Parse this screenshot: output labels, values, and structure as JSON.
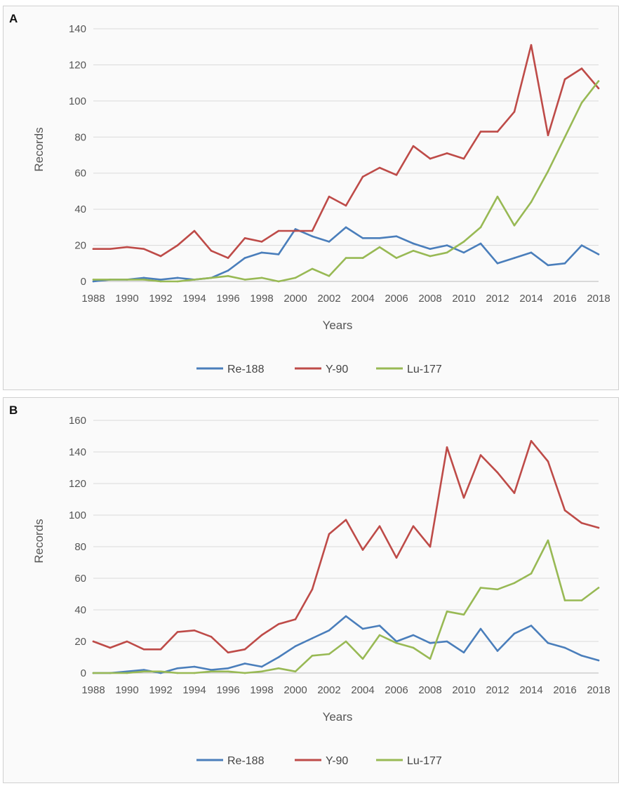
{
  "chart_data": [
    {
      "panel_label": "A",
      "type": "line",
      "title": "",
      "xlabel": "Years",
      "ylabel": "Records",
      "ylim": [
        0,
        140
      ],
      "ystep": 20,
      "grid": true,
      "legend_position": "bottom",
      "x": [
        1988,
        1989,
        1990,
        1991,
        1992,
        1993,
        1994,
        1995,
        1996,
        1997,
        1998,
        1999,
        2000,
        2001,
        2002,
        2003,
        2004,
        2005,
        2006,
        2007,
        2008,
        2009,
        2010,
        2011,
        2012,
        2013,
        2014,
        2015,
        2016,
        2017,
        2018
      ],
      "x_tick_labels": [
        "1988",
        "1990",
        "1992",
        "1994",
        "1996",
        "1998",
        "2000",
        "2002",
        "2004",
        "2006",
        "2008",
        "2010",
        "2012",
        "2014",
        "2016",
        "2018"
      ],
      "y_tick_labels": [
        "0",
        "20",
        "40",
        "60",
        "80",
        "100",
        "120",
        "140"
      ],
      "series": [
        {
          "name": "Re-188",
          "color": "#4a7ebb",
          "values": [
            0,
            1,
            1,
            2,
            1,
            2,
            1,
            2,
            6,
            13,
            16,
            15,
            29,
            25,
            22,
            30,
            24,
            24,
            25,
            21,
            18,
            20,
            16,
            21,
            10,
            13,
            16,
            9,
            10,
            20,
            15
          ]
        },
        {
          "name": "Y-90",
          "color": "#be4b48",
          "values": [
            18,
            18,
            19,
            18,
            14,
            20,
            28,
            17,
            13,
            24,
            22,
            28,
            28,
            28,
            47,
            42,
            58,
            63,
            59,
            75,
            68,
            71,
            68,
            83,
            83,
            94,
            131,
            81,
            112,
            118,
            107
          ]
        },
        {
          "name": "Lu-177",
          "color": "#98b954",
          "values": [
            1,
            1,
            1,
            1,
            0,
            0,
            1,
            2,
            3,
            1,
            2,
            0,
            2,
            7,
            3,
            13,
            13,
            19,
            13,
            17,
            14,
            16,
            22,
            30,
            47,
            31,
            44,
            61,
            80,
            99,
            111
          ]
        }
      ]
    },
    {
      "panel_label": "B",
      "type": "line",
      "title": "",
      "xlabel": "Years",
      "ylabel": "Records",
      "ylim": [
        0,
        160
      ],
      "ystep": 20,
      "grid": true,
      "legend_position": "bottom",
      "x": [
        1988,
        1989,
        1990,
        1991,
        1992,
        1993,
        1994,
        1995,
        1996,
        1997,
        1998,
        1999,
        2000,
        2001,
        2002,
        2003,
        2004,
        2005,
        2006,
        2007,
        2008,
        2009,
        2010,
        2011,
        2012,
        2013,
        2014,
        2015,
        2016,
        2017,
        2018
      ],
      "x_tick_labels": [
        "1988",
        "1990",
        "1992",
        "1994",
        "1996",
        "1998",
        "2000",
        "2002",
        "2004",
        "2006",
        "2008",
        "2010",
        "2012",
        "2014",
        "2016",
        "2018"
      ],
      "y_tick_labels": [
        "0",
        "20",
        "40",
        "60",
        "80",
        "100",
        "120",
        "140",
        "160"
      ],
      "series": [
        {
          "name": "Re-188",
          "color": "#4a7ebb",
          "values": [
            0,
            0,
            1,
            2,
            0,
            3,
            4,
            2,
            3,
            6,
            4,
            10,
            17,
            22,
            27,
            36,
            28,
            30,
            20,
            24,
            19,
            20,
            13,
            28,
            14,
            25,
            30,
            19,
            16,
            11,
            8
          ]
        },
        {
          "name": "Y-90",
          "color": "#be4b48",
          "values": [
            20,
            16,
            20,
            15,
            15,
            26,
            27,
            23,
            13,
            15,
            24,
            31,
            34,
            53,
            88,
            97,
            78,
            93,
            73,
            93,
            80,
            143,
            111,
            138,
            127,
            114,
            147,
            134,
            103,
            95,
            92
          ]
        },
        {
          "name": "Lu-177",
          "color": "#98b954",
          "values": [
            0,
            0,
            0,
            1,
            1,
            0,
            0,
            1,
            1,
            0,
            1,
            3,
            1,
            11,
            12,
            20,
            9,
            24,
            19,
            16,
            9,
            39,
            37,
            54,
            53,
            57,
            63,
            84,
            46,
            46,
            54
          ]
        }
      ]
    }
  ]
}
